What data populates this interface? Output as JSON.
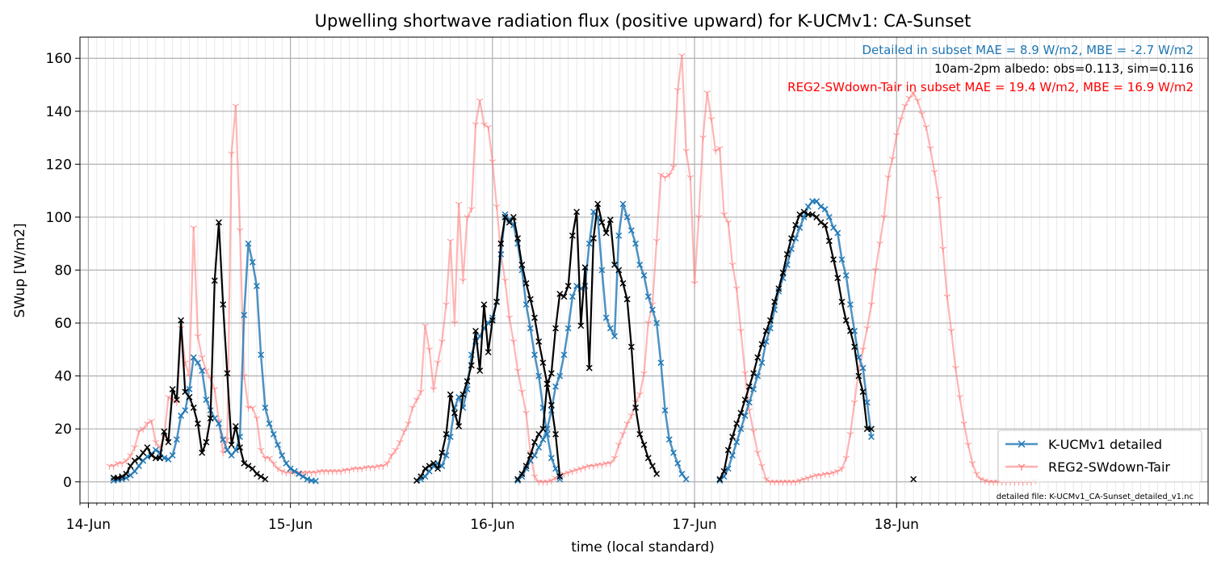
{
  "chart_data": {
    "type": "line",
    "title": "Upwelling shortwave radiation flux (positive upward) for K-UCMv1: CA-Sunset",
    "xlabel": "time (local standard)",
    "ylabel": "SWup [W/m2]",
    "x_unit": "hours since 14-Jun 00:00 (local standard)",
    "xlim": [
      -1,
      133
    ],
    "ylim": [
      -8,
      168
    ],
    "x_ticks": [
      0,
      24,
      48,
      72,
      96
    ],
    "x_tick_labels": [
      "14-Jun",
      "15-Jun",
      "16-Jun",
      "17-Jun",
      "18-Jun"
    ],
    "y_ticks": [
      0,
      20,
      40,
      60,
      80,
      100,
      120,
      140,
      160
    ],
    "y_tick_labels": [
      "0",
      "20",
      "40",
      "60",
      "80",
      "100",
      "120",
      "140",
      "160"
    ],
    "grid": true,
    "legend_position": "lower-right",
    "legend": [
      "K-UCMv1 detailed",
      "REG2-SWdown-Tair"
    ],
    "annotations": {
      "detailed_metrics": "Detailed in subset MAE = 8.9 W/m2, MBE = -2.7 W/m2",
      "albedo": "10am-2pm albedo: obs=0.113, sim=0.116",
      "reg2_metrics": "REG2-SWdown-Tair in subset MAE = 19.4 W/m2, MBE = 16.9 W/m2",
      "file_note": "detailed file: K-UCMv1_CA-Sunset_detailed_v1.nc"
    },
    "colors": {
      "detailed": "#1f77b4",
      "reg2": "#ff7a7a",
      "obs": "#000000",
      "detailed_text": "#1f77b4",
      "reg2_text": "#ff0000"
    },
    "series": [
      {
        "name": "K-UCMv1 detailed",
        "color": "#1f77b4",
        "marker": "x",
        "segments": [
          {
            "start": 3.0,
            "step": 0.5,
            "values": [
              0.5,
              0.8,
              1,
              1.5,
              2.5,
              4,
              6,
              8,
              9.5,
              10.5,
              12,
              11,
              9,
              8.5,
              10,
              16,
              25,
              27,
              35,
              47,
              45,
              42,
              31,
              27,
              24,
              22,
              16,
              12,
              10,
              12,
              17,
              63,
              90,
              83,
              74,
              48,
              28,
              22,
              18,
              14,
              10,
              7,
              5,
              4,
              3,
              2,
              1,
              0.5,
              0.3
            ]
          },
          {
            "start": 39.0,
            "step": 0.5,
            "values": [
              0.5,
              1,
              2,
              4,
              6,
              7,
              6,
              10,
              17,
              28,
              32,
              28,
              35,
              48,
              53,
              55,
              58,
              60,
              62,
              68,
              86,
              101,
              99,
              97,
              90,
              80,
              67,
              58,
              48,
              40,
              28,
              18,
              9,
              5,
              1
            ]
          },
          {
            "start": 51.0,
            "step": 0.5,
            "values": [
              0.5,
              2,
              5,
              8,
              10,
              13,
              16,
              20,
              27,
              36,
              40,
              48,
              58,
              70,
              74,
              73,
              74,
              90,
              102,
              100,
              80,
              62,
              58,
              55,
              93,
              105,
              100,
              95,
              90,
              82,
              78,
              70,
              65,
              60,
              45,
              27,
              16,
              11,
              7,
              3,
              1
            ]
          },
          {
            "start": 75.0,
            "step": 0.5,
            "values": [
              0.5,
              2,
              5,
              10,
              15,
              20,
              25,
              30,
              35,
              40,
              45,
              53,
              58,
              65,
              72,
              77,
              82,
              88,
              92,
              96,
              100,
              104,
              106,
              106,
              104,
              103,
              100,
              96,
              94,
              84,
              78,
              67,
              57,
              47,
              43,
              30,
              17
            ]
          }
        ]
      },
      {
        "name": "REG2-SWdown-Tair",
        "color": "#ff7a7a",
        "marker": "1",
        "segments": [
          {
            "start": 2.5,
            "step": 0.5,
            "values": [
              6,
              6,
              7,
              7,
              8,
              10,
              13,
              19,
              20,
              22,
              23,
              15,
              13,
              17,
              32,
              31,
              30,
              58,
              45,
              40,
              96,
              55,
              47,
              42,
              39,
              35,
              23,
              11,
              16,
              124,
              142,
              95,
              40,
              28,
              28,
              24,
              12,
              9,
              9,
              7,
              5,
              4,
              3.5,
              3.5,
              3.5,
              3.5,
              3.5,
              3.5,
              3.5,
              3.5,
              4,
              4,
              4,
              4,
              4,
              4,
              4.5,
              4.5,
              5,
              5,
              5,
              5.5,
              5.5,
              5.5,
              6,
              6,
              7,
              10,
              12,
              15,
              19,
              22,
              28,
              31,
              34,
              59,
              50,
              35,
              45,
              53,
              67,
              91,
              60,
              105,
              76,
              100,
              103,
              135,
              144,
              135,
              134,
              121,
              104,
              86,
              76,
              62,
              53,
              42,
              34,
              26,
              11,
              2,
              0,
              0,
              0,
              0.5,
              1.5,
              2.5,
              3,
              3.5,
              4,
              4.5,
              5,
              5.5,
              6,
              6,
              6.5,
              6.5,
              7,
              7,
              9,
              14,
              18,
              22,
              25,
              30,
              33,
              41,
              60,
              67,
              91,
              116,
              115,
              116,
              119,
              148,
              161,
              125,
              115,
              75,
              100,
              130,
              147,
              137,
              125,
              126,
              101,
              98,
              82,
              73,
              57,
              41,
              27,
              19,
              11,
              6,
              1,
              0,
              0,
              0,
              0,
              0,
              0,
              0,
              0.5,
              1,
              1.5,
              2,
              2.5,
              2.5,
              3,
              3,
              3.5,
              4,
              5,
              9,
              18,
              30,
              42,
              50,
              58,
              67,
              80,
              90,
              100,
              115,
              122,
              131,
              137,
              142,
              145,
              147,
              144,
              139,
              134,
              126,
              117,
              107,
              88,
              70,
              57,
              43,
              32,
              22,
              14,
              7,
              3,
              1,
              0.5,
              0,
              0,
              0,
              0,
              0,
              0,
              0,
              0,
              0,
              0,
              0,
              0.5
            ]
          }
        ]
      },
      {
        "name": "observed",
        "color": "#000000",
        "marker": "x",
        "segments": [
          {
            "start": 3.0,
            "step": 0.5,
            "values": [
              1.5,
              1.5,
              2,
              3,
              6,
              8,
              9,
              11,
              13,
              10,
              9,
              9,
              19,
              15,
              35,
              31,
              61,
              34,
              32,
              28,
              22,
              11,
              15,
              24,
              76,
              98,
              67,
              41,
              14,
              21,
              13,
              7,
              6,
              5,
              3,
              2,
              1
            ]
          },
          {
            "start": 39.0,
            "step": 0.5,
            "values": [
              0.5,
              2,
              5,
              6,
              7,
              5,
              11,
              18,
              33,
              26,
              21,
              33,
              38,
              44,
              57,
              42,
              67,
              49,
              61,
              68,
              90,
              100,
              98,
              100,
              92,
              82,
              75,
              69,
              62,
              53,
              45,
              37,
              29,
              18,
              2
            ]
          },
          {
            "start": 51.0,
            "step": 0.5,
            "values": [
              1,
              3,
              6,
              10,
              15,
              18,
              20,
              37,
              41,
              58,
              71,
              70,
              74,
              93,
              102,
              59,
              81,
              43,
              92,
              105,
              98,
              94,
              99,
              82,
              80,
              75,
              69,
              51,
              28,
              18,
              14,
              9,
              6,
              3
            ]
          },
          {
            "start": 75.0,
            "step": 0.5,
            "values": [
              1,
              4,
              12,
              17,
              22,
              26,
              31,
              36,
              41,
              47,
              52,
              57,
              61,
              68,
              73,
              79,
              86,
              92,
              97,
              101,
              102,
              101,
              101,
              100,
              98,
              97,
              91,
              84,
              77,
              68,
              61,
              57,
              51,
              40,
              34,
              20,
              20
            ]
          },
          {
            "start": 98.0,
            "step": 0.5,
            "values": [
              1
            ]
          }
        ]
      }
    ]
  }
}
